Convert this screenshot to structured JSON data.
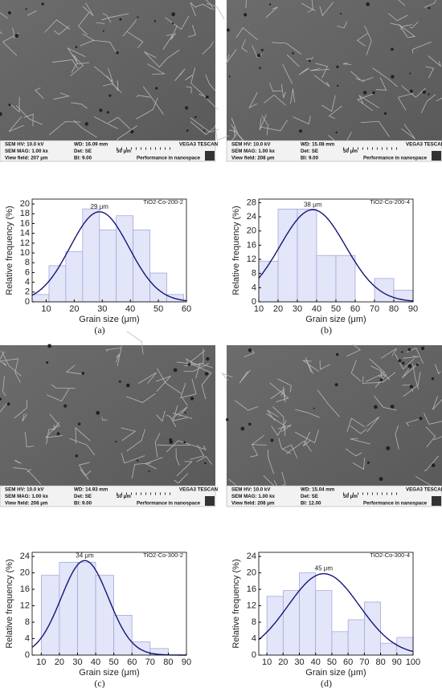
{
  "chart_data": [
    {
      "type": "histogram",
      "panel_label": "(a)",
      "xlabel": "Grain size (μm)",
      "ylabel": "Relative frequency (%)",
      "bins": [
        5,
        11,
        17,
        23,
        29,
        35,
        41,
        47,
        53,
        59
      ],
      "series": [
        {
          "name": "TiO2-Co-200-2",
          "color": "#e3e5f8",
          "values": [
            1.5,
            7.4,
            10.3,
            19,
            14.7,
            17.6,
            14.7,
            5.9,
            1.5
          ]
        }
      ],
      "fit": {
        "mean": 29,
        "sd": 10.5,
        "peak": 18.4,
        "color": "#15157a"
      },
      "annotation": "29 μm",
      "xlim": [
        5,
        60
      ],
      "xticks": [
        10,
        20,
        30,
        40,
        50,
        60
      ],
      "ylim": [
        0,
        21
      ],
      "yticks": [
        0,
        2,
        4,
        6,
        8,
        10,
        12,
        14,
        16,
        18,
        20
      ]
    },
    {
      "type": "histogram",
      "panel_label": "(b)",
      "xlabel": "Grain size (μm)",
      "ylabel": "Relative frequency (%)",
      "bins": [
        10,
        20,
        30,
        40,
        50,
        60,
        70,
        80,
        90
      ],
      "series": [
        {
          "name": "TiO2-Co-200-4",
          "color": "#e3e5f8",
          "values": [
            11.5,
            26.2,
            26.2,
            13.1,
            13.1,
            0,
            6.6,
            3.3
          ]
        }
      ],
      "fit": {
        "mean": 38,
        "sd": 17,
        "peak": 26,
        "color": "#15157a"
      },
      "annotation": "38 μm",
      "xlim": [
        10,
        90
      ],
      "xticks": [
        10,
        20,
        30,
        40,
        50,
        60,
        70,
        80,
        90
      ],
      "ylim": [
        0,
        29
      ],
      "yticks": [
        0,
        4,
        8,
        12,
        16,
        20,
        24,
        28
      ]
    },
    {
      "type": "histogram",
      "panel_label": "(c)",
      "xlabel": "Grain size (μm)",
      "ylabel": "Relative frequency (%)",
      "bins": [
        10,
        20,
        30,
        40,
        50,
        60,
        70,
        80
      ],
      "series": [
        {
          "name": "TiO2-Co-300-2",
          "color": "#e3e5f8",
          "values": [
            19.4,
            22.6,
            22.6,
            19.4,
            9.7,
            3.2,
            1.6
          ]
        }
      ],
      "fit": {
        "mean": 34,
        "sd": 13,
        "peak": 23,
        "color": "#15157a"
      },
      "annotation": "34 μm",
      "xlim": [
        5,
        90
      ],
      "xticks": [
        10,
        20,
        30,
        40,
        50,
        60,
        70,
        80,
        90
      ],
      "ylim": [
        0,
        25
      ],
      "yticks": [
        0,
        4,
        8,
        12,
        16,
        20,
        24
      ]
    },
    {
      "type": "histogram",
      "panel_label": "(d)",
      "xlabel": "Grain size (μm)",
      "ylabel": "Relative frequency (%)",
      "bins": [
        10,
        20,
        30,
        40,
        50,
        60,
        70,
        80,
        90,
        100
      ],
      "series": [
        {
          "name": "TiO2-Co-300-4",
          "color": "#e3e5f8",
          "values": [
            14.3,
            15.7,
            20,
            15.7,
            5.7,
            8.6,
            12.9,
            2.9,
            4.3
          ]
        }
      ],
      "fit": {
        "mean": 45,
        "sd": 22,
        "peak": 19.8,
        "color": "#15157a"
      },
      "annotation": "45 μm",
      "xlim": [
        5,
        100
      ],
      "xticks": [
        10,
        20,
        30,
        40,
        50,
        60,
        70,
        80,
        90,
        100
      ],
      "ylim": [
        0,
        25
      ],
      "yticks": [
        0,
        4,
        8,
        12,
        16,
        20,
        24
      ]
    }
  ],
  "sem_images": [
    {
      "rows": [
        [
          "SEM HV: 10.0 kV",
          "WD: 16.09 mm",
          "VEGA3 TESCAN"
        ],
        [
          "SEM MAG: 1.00 kx",
          "Det: SE",
          "50 μm"
        ],
        [
          "View field: 207 μm",
          "BI: 9.00",
          "Performance in nanospace"
        ]
      ]
    },
    {
      "rows": [
        [
          "SEM HV: 10.0 kV",
          "WD: 15.08 mm",
          "VEGA3 TESCAN"
        ],
        [
          "SEM MAG: 1.00 kx",
          "Det: SE",
          "50 μm"
        ],
        [
          "View field: 208 μm",
          "BI: 9.00",
          "Performance in nanospace"
        ]
      ]
    },
    {
      "rows": [
        [
          "SEM HV: 10.0 kV",
          "WD: 14.93 mm",
          "VEGA3 TESCAN"
        ],
        [
          "SEM MAG: 1.00 kx",
          "Det: SE",
          "50 μm"
        ],
        [
          "View field: 208 μm",
          "BI: 9.00",
          "Performance in nanospace"
        ]
      ]
    },
    {
      "rows": [
        [
          "SEM HV: 10.0 kV",
          "WD: 15.04 mm",
          "VEGA3 TESCAN"
        ],
        [
          "SEM MAG: 1.00 kx",
          "Det: SE",
          "50 μm"
        ],
        [
          "View field: 208 μm",
          "BI: 12.00",
          "Performance in nanospace"
        ]
      ]
    }
  ]
}
